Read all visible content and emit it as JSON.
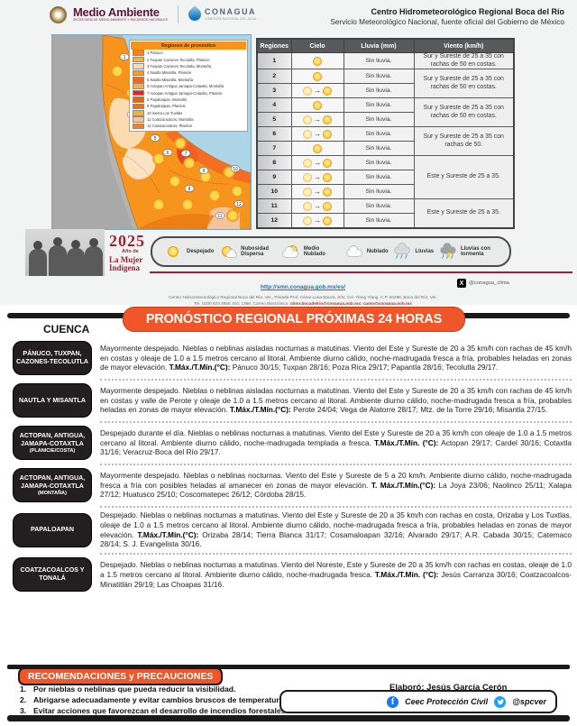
{
  "header": {
    "medio_ambiente": "Medio Ambiente",
    "medio_ambiente_tagline": "SECRETARÍA DE MEDIO AMBIENTE Y RECURSOS NATURALES",
    "conagua": "CONAGUA",
    "conagua_tagline": "COMISIÓN NACIONAL DEL AGUA",
    "title": "Centro Hidrometeorológico Regional Boca del Río",
    "subtitle": "Servicio Meteorológico Nacional, fuente oficial del Gobierno de México"
  },
  "map": {
    "legend_title": "Regiones de pronóstico",
    "legend_items": [
      {
        "label": "1 Pánuco",
        "color": "#F58220"
      },
      {
        "label": "2 Tuxpan Cazones Tecolutla, Planicie",
        "color": "#FBAE3C"
      },
      {
        "label": "3 Tuxpan Cazones Tecolutla, Montaña",
        "color": "#FBDCB0"
      },
      {
        "label": "4 Nautla Misantla, Planicie",
        "color": "#F89C1C"
      },
      {
        "label": "5 Nautla Misantla, Montaña",
        "color": "#F26722"
      },
      {
        "label": "6 Actopan Antigua Jamapa-Cotaxtla, Montaña",
        "color": "#FBB03C"
      },
      {
        "label": "7 Actopan Antigua Jamapa-Cotaxtla, Planicie",
        "color": "#E8231F"
      },
      {
        "label": "8 Papaloapan, Montaña",
        "color": "#D96A15"
      },
      {
        "label": "9 Papaloapan, Planicie",
        "color": "#E87511"
      },
      {
        "label": "10 Sierra Los Tuxtlas",
        "color": "#FBAE3C"
      },
      {
        "label": "11 Coatzacoalcos, Montaña",
        "color": "#F6C49B"
      },
      {
        "label": "12 Coatzacoalcos, Planicie",
        "color": "#F58220"
      }
    ]
  },
  "table": {
    "headers": [
      "Regiones",
      "Cielo",
      "Lluvia (mm)",
      "Viento (km/h)"
    ],
    "rows": [
      {
        "region": "1",
        "cielo": "sun",
        "lluvia": "Sin lluvia.",
        "viento": "Sur y Sureste de 25 a 35 con rachas de 50 en costas.",
        "viento_span": 1
      },
      {
        "region": "2",
        "cielo": "sun",
        "lluvia": "Sin lluvia.",
        "viento": "Sur y Sureste de 25 a 35 con rachas de 50 en costas.",
        "viento_span": 2
      },
      {
        "region": "3",
        "cielo": "sun-to-sun",
        "lluvia": "Sin lluvia."
      },
      {
        "region": "4",
        "cielo": "sun",
        "lluvia": "Sin lluvia.",
        "viento": "Sur y Sureste de 25 a 35 con rachas de 50 en costas.",
        "viento_span": 2
      },
      {
        "region": "5",
        "cielo": "sun-to-sun",
        "lluvia": "Sin lluvia."
      },
      {
        "region": "6",
        "cielo": "sun-to-sun",
        "lluvia": "Sin lluvia.",
        "viento": "Sur y Sureste de 25 a 35 con rachas de 50.",
        "viento_span": 2
      },
      {
        "region": "7",
        "cielo": "sun",
        "lluvia": "Sin lluvia."
      },
      {
        "region": "8",
        "cielo": "sun-to-sun",
        "lluvia": "Sin lluvia.",
        "viento": "Este y Sureste de 25 a 35.",
        "viento_span": 3
      },
      {
        "region": "9",
        "cielo": "sun-to-sun",
        "lluvia": "Sin lluvia."
      },
      {
        "region": "10",
        "cielo": "sun-to-sun",
        "lluvia": "Sin lluvia."
      },
      {
        "region": "11",
        "cielo": "sun-to-sun",
        "lluvia": "Sin lluvia.",
        "viento": "Este y Sureste de 25 a 35.",
        "viento_span": 2
      },
      {
        "region": "12",
        "cielo": "sun-to-sun",
        "lluvia": "Sin lluvia."
      }
    ]
  },
  "sky_legend": [
    {
      "icon": "sun-only",
      "label": "Despejado"
    },
    {
      "icon": "sun-cloud",
      "label": "Nubosidad Dispersa"
    },
    {
      "icon": "cloud-sun",
      "label": "Medio Nublado"
    },
    {
      "icon": "cloud-only",
      "label": "Nublado"
    },
    {
      "icon": "rain",
      "label": "Lluvias"
    },
    {
      "icon": "storm",
      "label": "Lluvias con tormenta"
    }
  ],
  "campaign": {
    "year": "2025",
    "line1": "Año de",
    "line2": "La Mujer",
    "line3": "Indígena"
  },
  "contact": {
    "url": "http://smn.conagua.gob.mx/es/",
    "address": "Centro Hidrometeorológico Regional Boca del Río, Ver., Privada Prof. César Luna Bauza, S/N, Col. Ylang Ylang, C.P. 94298, Boca del Río, Ver.",
    "phone_line": "Tel. (229) 923 3950, Ext. 1368, Correo Electrónico: ",
    "emails": "chmr.bocadelrio@conagua.gob.mx; cagm@conagua.gob.mx",
    "x_handle": "@conagua_clima"
  },
  "section": {
    "cuenca": "CUENCA",
    "title": "PRONÓSTICO REGIONAL PRÓXIMAS 24 HORAS"
  },
  "forecasts": [
    {
      "label": "PÁNUCO, TUXPAN, CAZONES-TECOLUTLA",
      "sublabel": "",
      "pre": "Mayormente despejado. Nieblas o neblinas aisladas nocturnas a matutinas. Viento del Este y Sureste de 20 a 35 km/h con rachas de 45 km/h en costas y oleaje de 1.0 a 1.5 metros cercano al litoral. Ambiente diurno cálido, noche-madrugada fresca a fría, probables heladas en zonas de mayor elevación. ",
      "bold": "T.Máx./T.Mín.(°C):",
      "post": " Pánuco 30/15; Tuxpan 28/16; Poza Rica 29/17; Papantla 28/16; Tecolutla 29/17."
    },
    {
      "label": "NAUTLA Y MISANTLA",
      "sublabel": "",
      "pre": "Mayormente despejado. Nieblas o neblinas aisladas nocturnas a matutinas. Viento del Este y Sureste de 20 a 35 km/h con rachas de 45 km/h en costas y valle de Perote y oleaje de 1.0 a 1.5 metros cercano al litoral. Ambiente diurno cálido, noche-madrugada fresca a fría, probables heladas en zonas de mayor elevación. ",
      "bold": "T.Máx./T.Mín.(°C):",
      "post": " Perote 24/04; Vega de Alatorre 28/17; Mtz. de la Torre 29/16; Misantla 27/15."
    },
    {
      "label": "ACTOPAN, ANTIGUA, JAMAPA-COTAXTLA",
      "sublabel": "(PLANICIE/COSTA)",
      "pre": "Despejado durante el día. Nieblas o neblinas nocturnas a matutinas. Viento del Este y Sureste de 20 a 35 km/h con oleaje de 1.0 a 1.5 metros cercano al litoral. Ambiente diurno cálido, noche-madrugada templada a fresca. ",
      "bold": "T.Máx./T.Mín. (°C):",
      "post": " Actopan 29/17; Cardel 30/16; Cotaxtla 31/16; Veracruz-Boca del Río 29/17."
    },
    {
      "label": "ACTOPAN, ANTIGUA, JAMAPA-COTAXTLA",
      "sublabel": "(MONTAÑA)",
      "pre": "Mayormente despejado. Nieblas o neblinas nocturnas. Viento del Este y Sureste de 5 a 20 km/h. Ambiente diurno cálido, noche-madrugada fresca a fría con posibles heladas al amanecer en zonas de mayor elevación. ",
      "bold": "T. Máx./T.Mín.(°C):",
      "post": " La Joya 23/06; Naolinco 25/11; Xalapa 27/12; Huatusco 25/10; Coscomatepec 26/12; Córdoba 28/15."
    },
    {
      "label": "PAPALOAPAN",
      "sublabel": "",
      "pre": "Despejado. Nieblas o neblinas nocturnas a matutinas. Viento del Este y Sureste de 20 a 35 km/h con rachas en costa, Orizaba y Los Tuxtlas, oleaje de 1.0 a 1.5 metros cercano al litoral. Ambiente diurno cálido, noche-madrugada fresca a fría, probables heladas en zonas de mayor elevación. ",
      "bold": "T.Máx./T.Mín.(°C):",
      "post": " Orizaba 28/14; Tierra Blanca 31/17; Cosamaloapan 32/16; Alvarado 29/17; A.R. Cabada 30/15; Catemaco 28/14; S. J. Evangelista 30/16."
    },
    {
      "label": "COATZACOALCOS Y TONALÁ",
      "sublabel": "",
      "pre": "Despejado. Nieblas o neblinas nocturnas a matutinas. Viento del Noreste, Este y Sureste de 20 a 35 km/h con rachas en costas, oleaje de 1.0 a 1.5 metros cercano al litoral. Ambiente diurno cálido, noche-madrugada fresca. ",
      "bold": "T.Máx./T.Mín. (°C):",
      "post": " Jesús Carranza 30/16; Coatzacoalcos-Minatitlán 29/19; Las Choapas 31/16."
    }
  ],
  "recommendations": {
    "title": "RECOMENDACIONES y PRECAUCIONES",
    "items": [
      {
        "num": "1.",
        "text": "Por nieblas o neblinas que pueda reducir la visibilidad."
      },
      {
        "num": "2.",
        "text": "Abrigarse adecuadamente y evitar cambios bruscos de temperatura."
      },
      {
        "num": "3.",
        "text": "Evitar acciones que favorezcan el desarrollo de incendios forestales."
      }
    ],
    "elaboro": "Elaboró: Jesús García Cerón"
  },
  "footer": {
    "facebook": "Ceec Protección Civil",
    "twitter": "@spcver"
  },
  "colors": {
    "accent_orange": "#F1562A",
    "maroon_red": "#9D2235",
    "gov_wine": "#611232",
    "table_header_gray": "#58595B",
    "sun_yellow": "#FFD84D",
    "sun_border_orange": "#F7941D",
    "sea_blue": "#AED4E8",
    "link_blue": "#1B75BB",
    "facebook_blue": "#1877F2",
    "twitter_blue": "#1DA1F2"
  }
}
